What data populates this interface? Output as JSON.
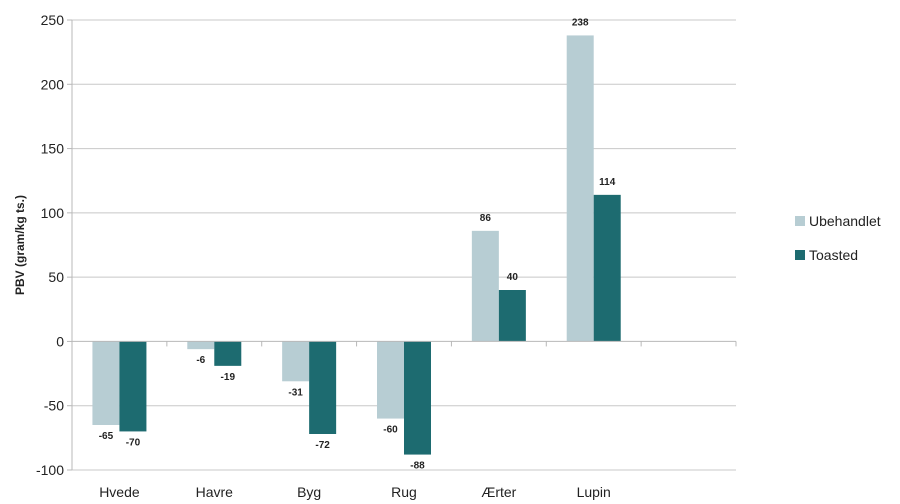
{
  "chart_data": {
    "type": "bar",
    "categories": [
      "Hvede",
      "Havre",
      "Byg",
      "Rug",
      "Ærter",
      "Lupin"
    ],
    "series": [
      {
        "name": "Ubehandlet",
        "values": [
          -65,
          -6,
          -31,
          -60,
          86,
          238
        ],
        "color": "#b7cdd3",
        "labels": [
          "-65",
          "-6",
          "-31",
          "-60",
          "86",
          "238"
        ]
      },
      {
        "name": "Toasted",
        "values": [
          -70,
          -19,
          -72,
          -88,
          40,
          114
        ],
        "color": "#1d6b70",
        "labels": [
          "-70",
          "-19",
          "-72",
          "-88",
          "40",
          "114"
        ]
      }
    ],
    "title": "",
    "xlabel": "",
    "ylabel": "PBV (gram/kg ts.)",
    "ylim": [
      -100,
      250
    ],
    "yticks": [
      250,
      200,
      150,
      100,
      50,
      0,
      -50,
      -100
    ],
    "ytick_labels": [
      "250",
      "200",
      "150",
      "100",
      "50",
      "0",
      "-50",
      "-100"
    ],
    "grid": true,
    "legend_position": "right"
  }
}
